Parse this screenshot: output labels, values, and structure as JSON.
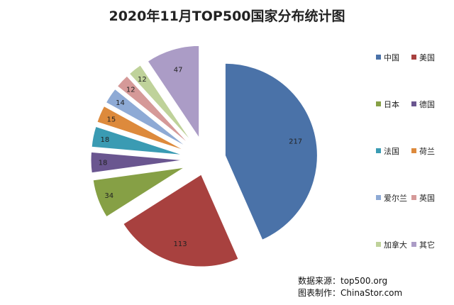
{
  "chart_data": {
    "type": "pie",
    "title": "2020年11月TOP500国家分布统计图",
    "legend_position": "right",
    "exploded": true,
    "series": [
      {
        "name": "中国",
        "value": 217,
        "color": "#4a72a8"
      },
      {
        "name": "美国",
        "value": 113,
        "color": "#a8413f"
      },
      {
        "name": "日本",
        "value": 34,
        "color": "#86a045"
      },
      {
        "name": "德国",
        "value": 18,
        "color": "#6a5690"
      },
      {
        "name": "法国",
        "value": 18,
        "color": "#3a9bb3"
      },
      {
        "name": "荷兰",
        "value": 15,
        "color": "#dd8a3c"
      },
      {
        "name": "爱尔兰",
        "value": 14,
        "color": "#8eaad5"
      },
      {
        "name": "英国",
        "value": 12,
        "color": "#d59998"
      },
      {
        "name": "加拿大",
        "value": 12,
        "color": "#bfd29a"
      },
      {
        "name": "其它",
        "value": 47,
        "color": "#ab9cc6"
      }
    ]
  },
  "footer": {
    "source": "数据来源：top500.org",
    "credit": "图表制作：ChinaStor.com"
  }
}
